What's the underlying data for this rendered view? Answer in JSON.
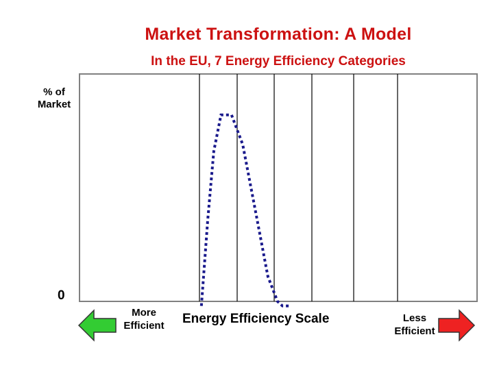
{
  "chart_data": {
    "type": "line",
    "title": "Market Transformation: A Model",
    "subtitle": "In the EU, 7 Energy Efficiency Categories",
    "ylabel": "% of Market",
    "y_tick_label": "0",
    "xlabel": "Energy Efficiency Scale",
    "left_label": "More Efficient",
    "right_label": "Less Efficient",
    "categories_count": 7,
    "ylim": [
      0,
      100
    ],
    "grid": false,
    "series": [
      {
        "line_style": "dotted",
        "color": "#1a1a8c",
        "x": [
          0.05,
          0.22,
          0.38,
          0.57,
          0.85,
          1.15,
          1.55,
          1.83,
          2.09,
          2.22,
          2.45
        ],
        "y": [
          -2,
          36,
          66,
          82,
          82,
          69,
          35,
          11,
          0,
          -2,
          -2
        ]
      }
    ]
  },
  "colors": {
    "title": "#cc1111",
    "left_arrow": "#33cc33",
    "right_arrow": "#ee2222"
  }
}
